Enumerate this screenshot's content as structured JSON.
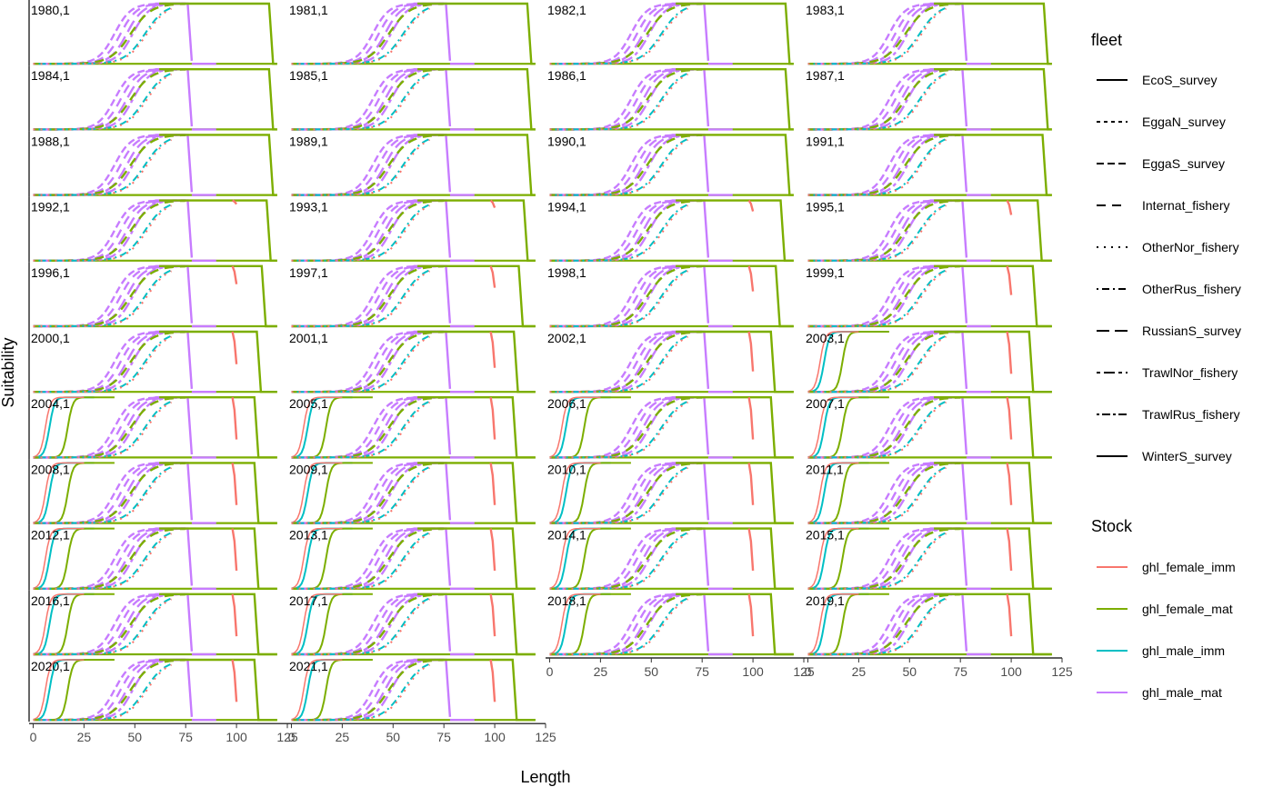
{
  "chart_data": {
    "type": "line",
    "xlabel": "Length",
    "ylabel": "Suitability",
    "xlim": [
      -2,
      125
    ],
    "ylim": [
      0,
      1
    ],
    "x_ticks": [
      "0",
      "25",
      "50",
      "75",
      "100",
      "125"
    ],
    "grid": false,
    "panels": [
      "1980,1",
      "1981,1",
      "1982,1",
      "1983,1",
      "1984,1",
      "1985,1",
      "1986,1",
      "1987,1",
      "1988,1",
      "1989,1",
      "1990,1",
      "1991,1",
      "1992,1",
      "1993,1",
      "1994,1",
      "1995,1",
      "1996,1",
      "1997,1",
      "1998,1",
      "1999,1",
      "2000,1",
      "2001,1",
      "2002,1",
      "2003,1",
      "2004,1",
      "2005,1",
      "2006,1",
      "2007,1",
      "2008,1",
      "2009,1",
      "2010,1",
      "2011,1",
      "2012,1",
      "2013,1",
      "2014,1",
      "2015,1",
      "2016,1",
      "2017,1",
      "2018,1",
      "2019,1",
      "2020,1",
      "2021,1"
    ],
    "legend_position": "right",
    "legend_fleet": {
      "title": "fleet",
      "items": [
        {
          "label": "EcoS_survey",
          "dash": "solid"
        },
        {
          "label": "EggaN_survey",
          "dash": "4,4"
        },
        {
          "label": "EggaS_survey",
          "dash": "8,4"
        },
        {
          "label": "Internat_fishery",
          "dash": "10,7"
        },
        {
          "label": "OtherNor_fishery",
          "dash": "2,6"
        },
        {
          "label": "OtherRus_fishery",
          "dash": "2,4,8,4"
        },
        {
          "label": "RussianS_survey",
          "dash": "14,6"
        },
        {
          "label": "TrawlNor_fishery",
          "dash": "4,4,12,4"
        },
        {
          "label": "TrawlRus_fishery",
          "dash": "3,3,9,3"
        },
        {
          "label": "WinterS_survey",
          "dash": "solid"
        }
      ]
    },
    "legend_stock": {
      "title": "Stock",
      "items": [
        {
          "label": "ghl_female_imm",
          "color": "#F8766D"
        },
        {
          "label": "ghl_female_mat",
          "color": "#7CAE00"
        },
        {
          "label": "ghl_male_imm",
          "color": "#00BFC4"
        },
        {
          "label": "ghl_male_mat",
          "color": "#C77CFF"
        }
      ]
    }
  }
}
